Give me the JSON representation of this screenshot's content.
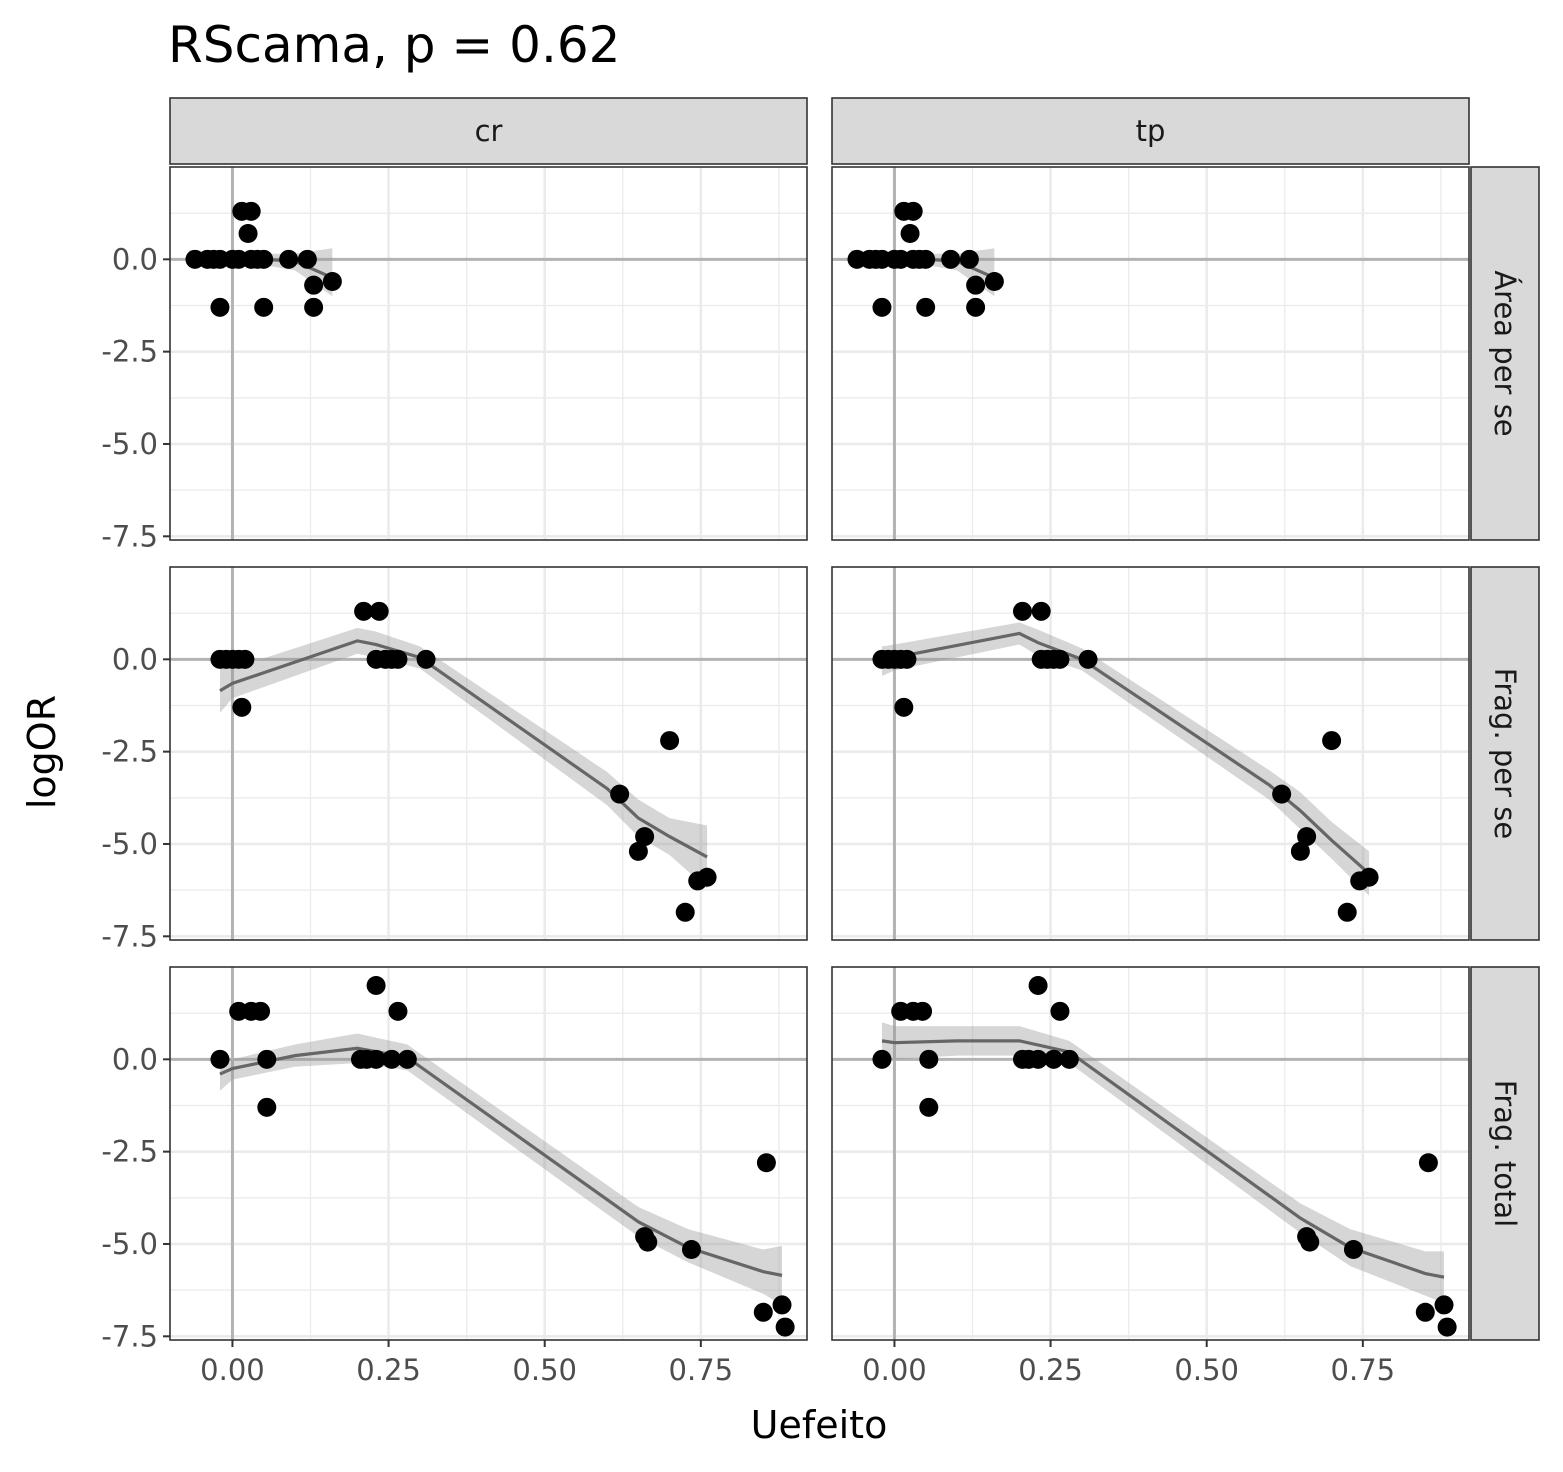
{
  "chart_data": {
    "type": "scatter",
    "title": "RScama, p = 0.62",
    "xlabel": "Uefeito",
    "ylabel": "logOR",
    "xlim": [
      -0.1,
      0.92
    ],
    "ylim": [
      -7.6,
      2.5
    ],
    "x_ticks": [
      0.0,
      0.25,
      0.5,
      0.75
    ],
    "x_tick_labels": [
      "0.00",
      "0.25",
      "0.50",
      "0.75"
    ],
    "y_ticks": [
      0.0,
      -2.5,
      -5.0,
      -7.5
    ],
    "y_tick_labels": [
      "0.0",
      "-2.5",
      "-5.0",
      "-7.5"
    ],
    "reference_lines": {
      "x": 0,
      "y": 0
    },
    "grid": true,
    "columns": [
      "cr",
      "tp"
    ],
    "rows": [
      "Área per se",
      "Frag. per se",
      "Frag. total"
    ],
    "panels": [
      {
        "col": "cr",
        "row": "Área per se",
        "points": [
          [
            -0.06,
            0
          ],
          [
            -0.04,
            0
          ],
          [
            -0.03,
            0
          ],
          [
            -0.02,
            0
          ],
          [
            0.0,
            0
          ],
          [
            0.01,
            0
          ],
          [
            0.015,
            1.3
          ],
          [
            0.03,
            1.3
          ],
          [
            0.025,
            0.7
          ],
          [
            0.03,
            0
          ],
          [
            0.04,
            0
          ],
          [
            0.05,
            0
          ],
          [
            0.09,
            0
          ],
          [
            0.12,
            0
          ],
          [
            -0.02,
            -1.3
          ],
          [
            0.05,
            -1.3
          ],
          [
            0.13,
            -1.3
          ],
          [
            0.13,
            -0.7
          ],
          [
            0.16,
            -0.6
          ]
        ],
        "fit": [
          [
            -0.07,
            0.02
          ],
          [
            0.0,
            0.01
          ],
          [
            0.05,
            0.0
          ],
          [
            0.1,
            -0.05
          ],
          [
            0.16,
            -0.5
          ]
        ],
        "band": [
          [
            -0.07,
            0.25,
            -0.2
          ],
          [
            0.0,
            0.15,
            -0.1
          ],
          [
            0.05,
            0.15,
            -0.15
          ],
          [
            0.1,
            0.15,
            -0.3
          ],
          [
            0.16,
            0.3,
            -1.0
          ]
        ]
      },
      {
        "col": "tp",
        "row": "Área per se",
        "points": [
          [
            -0.06,
            0
          ],
          [
            -0.04,
            0
          ],
          [
            -0.03,
            0
          ],
          [
            -0.02,
            0
          ],
          [
            0.0,
            0
          ],
          [
            0.01,
            0
          ],
          [
            0.015,
            1.3
          ],
          [
            0.03,
            1.3
          ],
          [
            0.025,
            0.7
          ],
          [
            0.03,
            0
          ],
          [
            0.04,
            0
          ],
          [
            0.05,
            0
          ],
          [
            0.09,
            0
          ],
          [
            0.12,
            0
          ],
          [
            -0.02,
            -1.3
          ],
          [
            0.05,
            -1.3
          ],
          [
            0.13,
            -1.3
          ],
          [
            0.13,
            -0.7
          ],
          [
            0.16,
            -0.6
          ]
        ],
        "fit": [
          [
            -0.07,
            0.02
          ],
          [
            0.0,
            0.01
          ],
          [
            0.05,
            0.0
          ],
          [
            0.1,
            -0.05
          ],
          [
            0.16,
            -0.5
          ]
        ],
        "band": [
          [
            -0.07,
            0.25,
            -0.2
          ],
          [
            0.0,
            0.15,
            -0.1
          ],
          [
            0.05,
            0.15,
            -0.15
          ],
          [
            0.1,
            0.15,
            -0.3
          ],
          [
            0.16,
            0.3,
            -1.0
          ]
        ]
      },
      {
        "col": "cr",
        "row": "Frag. per se",
        "points": [
          [
            -0.02,
            0
          ],
          [
            -0.01,
            0
          ],
          [
            0.0,
            0
          ],
          [
            0.01,
            0
          ],
          [
            0.02,
            0
          ],
          [
            0.015,
            -1.3
          ],
          [
            0.21,
            1.3
          ],
          [
            0.235,
            1.3
          ],
          [
            0.23,
            0
          ],
          [
            0.245,
            0
          ],
          [
            0.255,
            0
          ],
          [
            0.265,
            0
          ],
          [
            0.31,
            0
          ],
          [
            0.62,
            -3.65
          ],
          [
            0.65,
            -5.2
          ],
          [
            0.66,
            -4.8
          ],
          [
            0.7,
            -2.2
          ],
          [
            0.725,
            -6.85
          ],
          [
            0.745,
            -6.0
          ],
          [
            0.76,
            -5.9
          ]
        ],
        "fit": [
          [
            -0.02,
            -0.85
          ],
          [
            0.0,
            -0.65
          ],
          [
            0.2,
            0.5
          ],
          [
            0.23,
            0.4
          ],
          [
            0.3,
            0.05
          ],
          [
            0.6,
            -3.5
          ],
          [
            0.65,
            -4.3
          ],
          [
            0.7,
            -4.8
          ],
          [
            0.76,
            -5.35
          ]
        ],
        "band": [
          [
            -0.02,
            -0.25,
            -1.45
          ],
          [
            0.0,
            -0.25,
            -1.05
          ],
          [
            0.2,
            0.85,
            0.15
          ],
          [
            0.23,
            0.75,
            0.05
          ],
          [
            0.3,
            0.35,
            -0.25
          ],
          [
            0.6,
            -3.05,
            -3.95
          ],
          [
            0.65,
            -3.8,
            -4.8
          ],
          [
            0.7,
            -4.3,
            -5.3
          ],
          [
            0.76,
            -4.5,
            -6.2
          ]
        ]
      },
      {
        "col": "tp",
        "row": "Frag. per se",
        "points": [
          [
            -0.02,
            0
          ],
          [
            -0.01,
            0
          ],
          [
            0.0,
            0
          ],
          [
            0.01,
            0
          ],
          [
            0.02,
            0
          ],
          [
            0.015,
            -1.3
          ],
          [
            0.205,
            1.3
          ],
          [
            0.235,
            1.3
          ],
          [
            0.235,
            0
          ],
          [
            0.245,
            0
          ],
          [
            0.255,
            0
          ],
          [
            0.265,
            0
          ],
          [
            0.31,
            0
          ],
          [
            0.62,
            -3.65
          ],
          [
            0.65,
            -5.2
          ],
          [
            0.66,
            -4.8
          ],
          [
            0.7,
            -2.2
          ],
          [
            0.725,
            -6.85
          ],
          [
            0.745,
            -6.0
          ],
          [
            0.76,
            -5.9
          ]
        ],
        "fit": [
          [
            -0.02,
            -0.05
          ],
          [
            0.0,
            0.05
          ],
          [
            0.2,
            0.7
          ],
          [
            0.23,
            0.45
          ],
          [
            0.3,
            0.0
          ],
          [
            0.6,
            -3.4
          ],
          [
            0.65,
            -4.1
          ],
          [
            0.7,
            -4.9
          ],
          [
            0.76,
            -5.8
          ]
        ],
        "band": [
          [
            -0.02,
            0.35,
            -0.45
          ],
          [
            0.0,
            0.4,
            -0.3
          ],
          [
            0.2,
            1.0,
            0.4
          ],
          [
            0.23,
            0.8,
            0.1
          ],
          [
            0.3,
            0.3,
            -0.3
          ],
          [
            0.6,
            -3.0,
            -3.8
          ],
          [
            0.65,
            -3.6,
            -4.6
          ],
          [
            0.7,
            -4.4,
            -5.4
          ],
          [
            0.76,
            -5.2,
            -6.4
          ]
        ]
      },
      {
        "col": "cr",
        "row": "Frag. total",
        "points": [
          [
            -0.02,
            0
          ],
          [
            0.01,
            1.3
          ],
          [
            0.03,
            1.3
          ],
          [
            0.045,
            1.3
          ],
          [
            0.055,
            0
          ],
          [
            0.055,
            -1.3
          ],
          [
            0.205,
            0
          ],
          [
            0.215,
            0
          ],
          [
            0.23,
            2.0
          ],
          [
            0.23,
            0
          ],
          [
            0.255,
            0
          ],
          [
            0.265,
            1.3
          ],
          [
            0.28,
            0
          ],
          [
            0.66,
            -4.8
          ],
          [
            0.665,
            -4.95
          ],
          [
            0.735,
            -5.15
          ],
          [
            0.855,
            -2.8
          ],
          [
            0.85,
            -6.85
          ],
          [
            0.88,
            -6.65
          ],
          [
            0.885,
            -7.25
          ]
        ],
        "fit": [
          [
            -0.02,
            -0.4
          ],
          [
            0.0,
            -0.25
          ],
          [
            0.1,
            0.1
          ],
          [
            0.2,
            0.3
          ],
          [
            0.28,
            0.05
          ],
          [
            0.65,
            -4.4
          ],
          [
            0.73,
            -5.1
          ],
          [
            0.85,
            -5.75
          ],
          [
            0.88,
            -5.85
          ]
        ],
        "band": [
          [
            -0.02,
            0.05,
            -0.85
          ],
          [
            0.0,
            0.0,
            -0.55
          ],
          [
            0.1,
            0.4,
            -0.2
          ],
          [
            0.2,
            0.7,
            -0.1
          ],
          [
            0.28,
            0.4,
            -0.3
          ],
          [
            0.65,
            -4.0,
            -4.8
          ],
          [
            0.73,
            -4.6,
            -5.5
          ],
          [
            0.85,
            -5.15,
            -6.35
          ],
          [
            0.88,
            -5.05,
            -6.65
          ]
        ]
      },
      {
        "col": "tp",
        "row": "Frag. total",
        "points": [
          [
            -0.02,
            0
          ],
          [
            0.01,
            1.3
          ],
          [
            0.03,
            1.3
          ],
          [
            0.045,
            1.3
          ],
          [
            0.055,
            0
          ],
          [
            0.055,
            -1.3
          ],
          [
            0.205,
            0
          ],
          [
            0.215,
            0
          ],
          [
            0.23,
            2.0
          ],
          [
            0.23,
            0
          ],
          [
            0.255,
            0
          ],
          [
            0.265,
            1.3
          ],
          [
            0.28,
            0
          ],
          [
            0.66,
            -4.8
          ],
          [
            0.665,
            -4.95
          ],
          [
            0.735,
            -5.15
          ],
          [
            0.855,
            -2.8
          ],
          [
            0.85,
            -6.85
          ],
          [
            0.88,
            -6.65
          ],
          [
            0.885,
            -7.25
          ]
        ],
        "fit": [
          [
            -0.02,
            0.5
          ],
          [
            0.0,
            0.45
          ],
          [
            0.1,
            0.5
          ],
          [
            0.2,
            0.5
          ],
          [
            0.28,
            0.2
          ],
          [
            0.65,
            -4.3
          ],
          [
            0.73,
            -5.1
          ],
          [
            0.85,
            -5.8
          ],
          [
            0.88,
            -5.9
          ]
        ],
        "band": [
          [
            -0.02,
            1.0,
            0.0
          ],
          [
            0.0,
            0.9,
            0.0
          ],
          [
            0.1,
            0.9,
            0.1
          ],
          [
            0.2,
            0.9,
            0.1
          ],
          [
            0.28,
            0.5,
            -0.1
          ],
          [
            0.65,
            -3.9,
            -4.7
          ],
          [
            0.73,
            -4.6,
            -5.6
          ],
          [
            0.85,
            -5.2,
            -6.4
          ],
          [
            0.88,
            -5.2,
            -6.6
          ]
        ]
      }
    ]
  }
}
